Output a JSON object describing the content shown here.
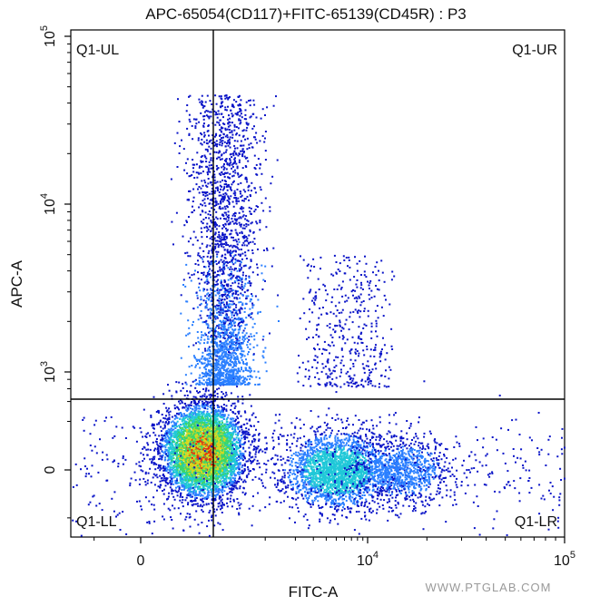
{
  "chart_data": {
    "type": "scatter",
    "subtype": "flow-cytometry-density-dot-plot",
    "title": "APC-65054(CD117)+FITC-65139(CD45R) : P3",
    "xlabel": "FITC-A",
    "ylabel": "APC-A",
    "x_scale": "biexponential",
    "y_scale": "biexponential",
    "x_ticks": [
      {
        "value": 0,
        "base": "0",
        "exp": ""
      },
      {
        "value": 10000,
        "base": "10",
        "exp": "4"
      },
      {
        "value": 100000,
        "base": "10",
        "exp": "5"
      }
    ],
    "y_ticks": [
      {
        "value": 0,
        "base": "0",
        "exp": ""
      },
      {
        "value": 1000,
        "base": "10",
        "exp": "3"
      },
      {
        "value": 10000,
        "base": "10",
        "exp": "4"
      },
      {
        "value": 100000,
        "base": "10",
        "exp": "5"
      }
    ],
    "x_range": [
      -1500,
      100000
    ],
    "y_range": [
      -700,
      100000
    ],
    "gates": {
      "name": "Q1",
      "x_threshold": 1800,
      "y_threshold": 600,
      "quadrants": [
        "Q1-UL",
        "Q1-UR",
        "Q1-LL",
        "Q1-LR"
      ]
    },
    "populations": [
      {
        "population": "CD117- CD45R- (lower-left)",
        "x_center": 200,
        "y_center": 50,
        "density": "highest"
      },
      {
        "population": "CD117+ CD45R- (upper-left)",
        "x_center": 300,
        "y_center_range": [
          700,
          40000
        ],
        "density": "medium"
      },
      {
        "population": "CD117- CD45R+ (lower-right)",
        "x_center": 5000,
        "y_center": 0,
        "density": "medium"
      },
      {
        "population": "CD117- CD45R+ high (lower-right)",
        "x_center": 15000,
        "y_center": 0,
        "density": "low"
      },
      {
        "population": "CD117+ CD45R+ (upper-right)",
        "x_center": 5000,
        "y_center_range": [
          700,
          4000
        ],
        "density": "sparse"
      }
    ],
    "color_scale": [
      "#0a14c8",
      "#2a7fff",
      "#20c8d8",
      "#3ad66a",
      "#d8d820",
      "#e03010"
    ],
    "grid": false,
    "legend": "none"
  },
  "watermark": "WWW.PTGLAB.COM"
}
